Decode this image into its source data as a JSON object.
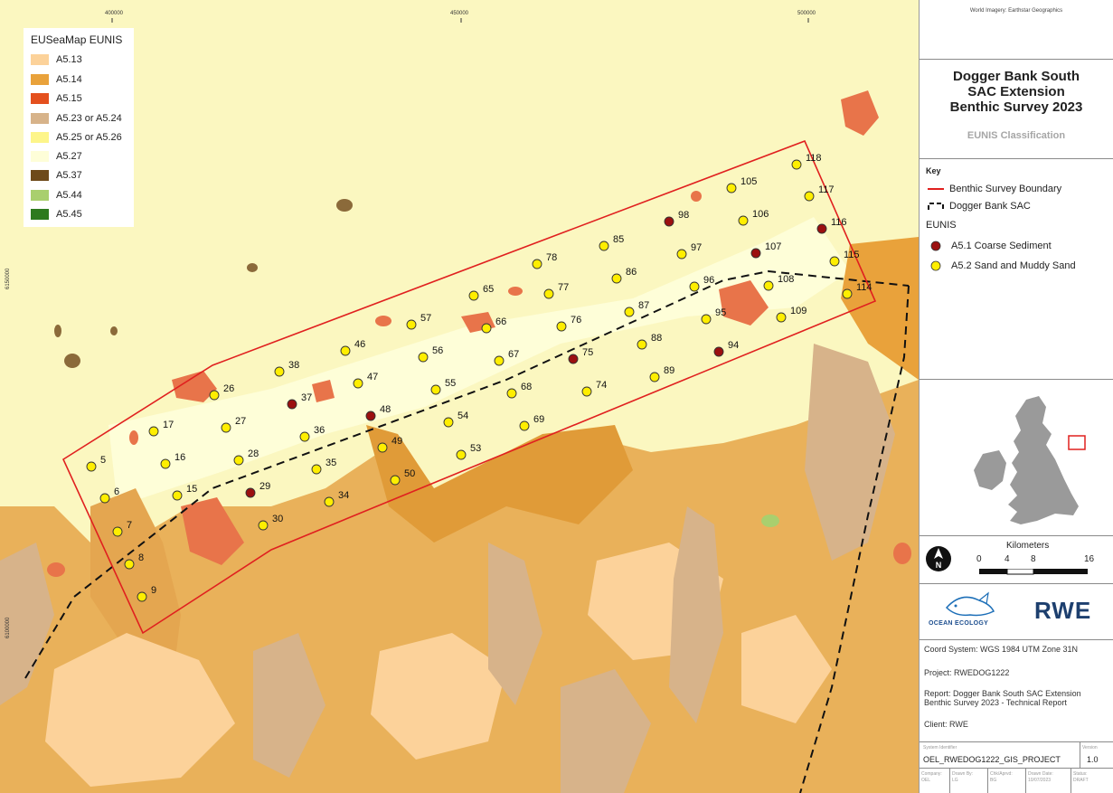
{
  "map": {
    "x_ticks": [
      "400000",
      "450000",
      "500000"
    ],
    "y_ticks": [
      "6150000",
      "6100000"
    ]
  },
  "legend": {
    "title": "EUSeaMap EUNIS",
    "items": [
      {
        "label": "A5.13",
        "color": "#fcd29a"
      },
      {
        "label": "A5.14",
        "color": "#e9a23b"
      },
      {
        "label": "A5.15",
        "color": "#e4501e"
      },
      {
        "label": "A5.23 or A5.24",
        "color": "#d7b38a"
      },
      {
        "label": "A5.25 or A5.26",
        "color": "#fdf58a"
      },
      {
        "label": "A5.27",
        "color": "#fefed8"
      },
      {
        "label": "A5.37",
        "color": "#6e4a1a"
      },
      {
        "label": "A5.44",
        "color": "#a9cf6e"
      },
      {
        "label": "A5.45",
        "color": "#2d7a1e"
      }
    ]
  },
  "colors": {
    "sea_base": "#fbf7c0",
    "boundary": "#e0201f",
    "sand_point": "#ffee00",
    "coarse_point": "#9b1010"
  },
  "stations": {
    "sand": [
      "5",
      "6",
      "7",
      "8",
      "9",
      "15",
      "16",
      "17",
      "26",
      "27",
      "28",
      "30",
      "34",
      "35",
      "36",
      "38",
      "46",
      "47",
      "49",
      "50",
      "53",
      "54",
      "55",
      "56",
      "57",
      "65",
      "66",
      "67",
      "68",
      "69",
      "74",
      "76",
      "77",
      "78",
      "85",
      "86",
      "87",
      "88",
      "89",
      "95",
      "96",
      "97",
      "105",
      "106",
      "108",
      "109",
      "114",
      "115",
      "117",
      "118"
    ],
    "coarse": [
      "29",
      "37",
      "48",
      "75",
      "94",
      "98",
      "107",
      "116"
    ]
  },
  "panel": {
    "credit": "World Imagery: Earthstar Geographics",
    "title_lines": [
      "Dogger Bank South",
      "SAC Extension",
      "Benthic Survey 2023"
    ],
    "subtitle": "EUNIS Classification",
    "key": {
      "title": "Key",
      "boundary": "Benthic Survey Boundary",
      "sac": "Dogger Bank SAC",
      "eunis_title": "EUNIS",
      "coarse": "A5.1 Coarse Sediment",
      "sand": "A5.2 Sand and Muddy Sand"
    },
    "scale": {
      "title": "Kilometers",
      "labels": [
        "0",
        "4",
        "8",
        "16"
      ],
      "north": "N"
    },
    "logos": {
      "ocean_ecology": "OCEAN ECOLOGY",
      "rwe": "RWE"
    },
    "info": {
      "coord": "Coord System: WGS 1984 UTM Zone 31N",
      "project": "Project: RWEDOG1222",
      "report_line1": "Report: Dogger Bank South SAC Extension",
      "report_line2": "Benthic Survey 2023 - Technical Report",
      "client": "Client: RWE"
    },
    "system": {
      "label": "System Identifier",
      "value": "OEL_RWEDOG1222_GIS_PROJECT",
      "version_label": "Version",
      "version": "1.0"
    },
    "footer": [
      {
        "label": "Company:",
        "value": "OEL"
      },
      {
        "label": "Drawn By:",
        "value": "LG"
      },
      {
        "label": "Chk/Aprvd:",
        "value": "BG"
      },
      {
        "label": "Drawn Date:",
        "value": "10/07/2023"
      },
      {
        "label": "Status:",
        "value": "DRAFT"
      }
    ]
  }
}
